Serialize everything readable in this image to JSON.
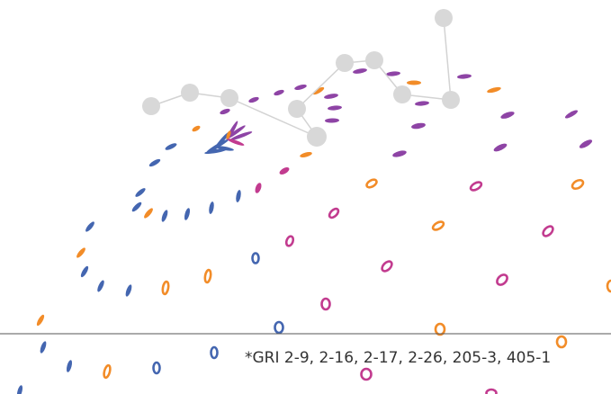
{
  "footnote": "*GRI 2-9, 2-16, 2-17, 2-26, 205-3, 405-1"
}
